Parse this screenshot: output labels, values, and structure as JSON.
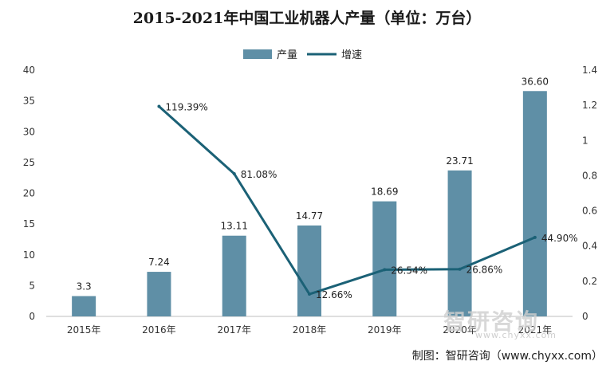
{
  "title": "2015-2021年中国工业机器人产量（单位：万台）",
  "source": "制图：智研咨询（www.chyxx.com）",
  "watermark": {
    "text": "智研咨询",
    "url": "www.chyxx.com"
  },
  "colors": {
    "bar": "#5f8fa6",
    "line": "#1b6176",
    "axis": "#bfbfbf",
    "text": "#333333"
  },
  "chart_data": {
    "type": "bar",
    "categories": [
      "2015年",
      "2016年",
      "2017年",
      "2018年",
      "2019年",
      "2020年",
      "2021年"
    ],
    "series": [
      {
        "name": "产量",
        "type": "bar",
        "axis": "left",
        "values": [
          3.3,
          7.24,
          13.11,
          14.77,
          18.69,
          23.71,
          36.6
        ],
        "labels": [
          "3.3",
          "7.24",
          "13.11",
          "14.77",
          "18.69",
          "23.71",
          "36.60"
        ]
      },
      {
        "name": "增速",
        "type": "line",
        "axis": "right",
        "values": [
          null,
          1.1939,
          0.8108,
          0.1266,
          0.2654,
          0.2686,
          0.449
        ],
        "labels": [
          "",
          "119.39%",
          "81.08%",
          "12.66%",
          "26.54%",
          "26.86%",
          "44.90%"
        ]
      }
    ],
    "y_left": {
      "min": 0,
      "max": 40,
      "ticks": [
        "0",
        "5",
        "10",
        "15",
        "20",
        "25",
        "30",
        "35",
        "40"
      ]
    },
    "y_right": {
      "min": 0,
      "max": 1.4,
      "ticks": [
        "0",
        "0.2",
        "0.4",
        "0.6",
        "0.8",
        "1",
        "1.2",
        "1.4"
      ]
    },
    "legend": "top-center",
    "grid": false
  }
}
